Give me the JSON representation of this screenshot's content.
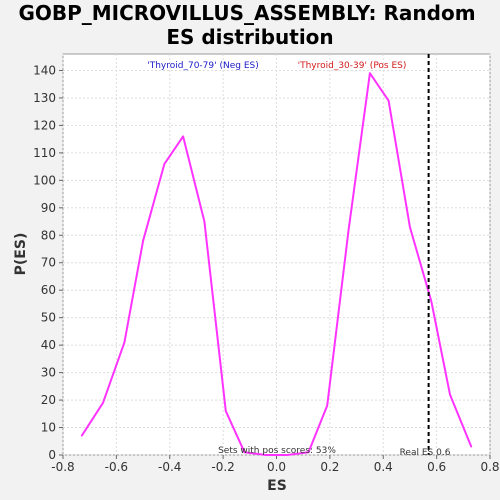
{
  "chart_data": {
    "type": "line",
    "title_line1": "GOBP_MICROVILLUS_ASSEMBLY: Random",
    "title_line2": "ES distribution",
    "xlabel": "ES",
    "ylabel": "P(ES)",
    "xlim": [
      -0.8,
      0.8
    ],
    "ylim": [
      0,
      146
    ],
    "x_ticks": [
      "-0.8",
      "-0.6",
      "-0.4",
      "-0.2",
      "0.0",
      "0.2",
      "0.4",
      "0.6",
      "0.8"
    ],
    "y_ticks": [
      "0",
      "10",
      "20",
      "30",
      "40",
      "50",
      "60",
      "70",
      "80",
      "90",
      "100",
      "110",
      "120",
      "130",
      "140"
    ],
    "grid": true,
    "series": [
      {
        "color": "#ff33ff",
        "x": [
          -0.73,
          -0.65,
          -0.57,
          -0.5,
          -0.42,
          -0.35,
          -0.27,
          -0.19,
          -0.12,
          -0.04,
          0.04,
          0.12,
          0.19,
          0.27,
          0.35,
          0.42,
          0.5,
          0.58,
          0.65,
          0.73
        ],
        "y": [
          7,
          19,
          41,
          78,
          106,
          116,
          85,
          16,
          1,
          0,
          0,
          1,
          18,
          82,
          139,
          129,
          83,
          56,
          22,
          3
        ]
      }
    ],
    "real_es": {
      "value": 0.57,
      "label": "Real ES 0.6"
    },
    "annotations": {
      "neg": "'Thyroid_70-79' (Neg ES)",
      "pos": "'Thyroid_30-39' (Pos ES)",
      "pos_scores": "Sets with pos scores: 53%"
    }
  }
}
